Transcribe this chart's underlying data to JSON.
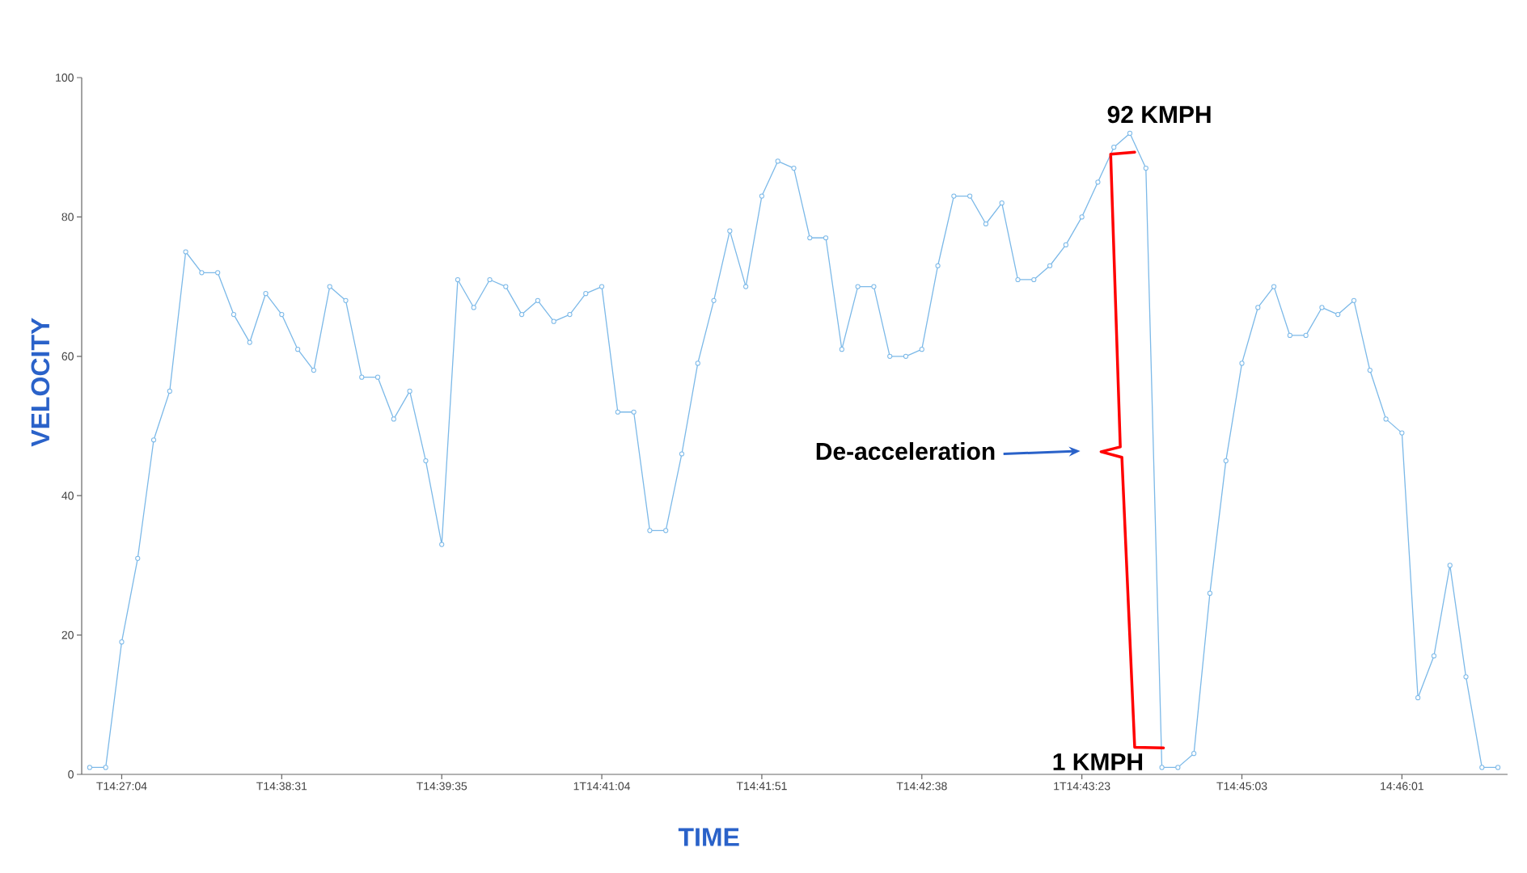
{
  "chart_data": {
    "type": "line",
    "xlabel": "TIME",
    "ylabel": "VELOCITY",
    "categories": [
      null,
      null,
      "T14:27:04",
      null,
      null,
      null,
      null,
      null,
      null,
      null,
      null,
      null,
      "T14:38:31",
      null,
      null,
      null,
      null,
      null,
      null,
      null,
      null,
      null,
      "T14:39:35",
      null,
      null,
      null,
      null,
      null,
      null,
      null,
      null,
      null,
      "1T14:41:04",
      null,
      null,
      null,
      null,
      null,
      null,
      null,
      null,
      null,
      "T14:41:51",
      null,
      null,
      null,
      null,
      null,
      null,
      null,
      null,
      null,
      "T14:42:38",
      null,
      null,
      null,
      null,
      null,
      null,
      null,
      null,
      null,
      "1T14:43:23",
      null,
      null,
      null,
      null,
      null,
      null,
      null,
      null,
      null,
      "T14:45:03",
      null,
      null,
      null,
      null,
      null,
      null,
      null,
      null,
      null,
      "14:46:01",
      null,
      null,
      null,
      null,
      null,
      null
    ],
    "values": [
      1,
      1,
      19,
      31,
      48,
      55,
      75,
      72,
      72,
      66,
      62,
      69,
      66,
      61,
      58,
      70,
      68,
      57,
      57,
      51,
      55,
      45,
      33,
      71,
      67,
      71,
      70,
      66,
      68,
      65,
      66,
      69,
      70,
      52,
      52,
      35,
      35,
      46,
      59,
      68,
      78,
      70,
      83,
      88,
      87,
      77,
      77,
      61,
      70,
      70,
      60,
      60,
      61,
      73,
      83,
      83,
      79,
      82,
      71,
      71,
      73,
      76,
      80,
      85,
      90,
      92,
      87,
      1,
      1,
      3,
      26,
      45,
      59,
      67,
      70,
      63,
      63,
      67,
      66,
      68,
      58,
      51,
      49,
      11,
      17,
      30,
      14,
      1,
      1
    ],
    "color": "#7cb9e8",
    "marker": "circle",
    "ylim": [
      0,
      100
    ],
    "yticks": [
      0,
      20,
      40,
      60,
      80,
      100
    ],
    "annotations": [
      "92 KMPH",
      "1 KMPH",
      "De-acceleration"
    ]
  }
}
